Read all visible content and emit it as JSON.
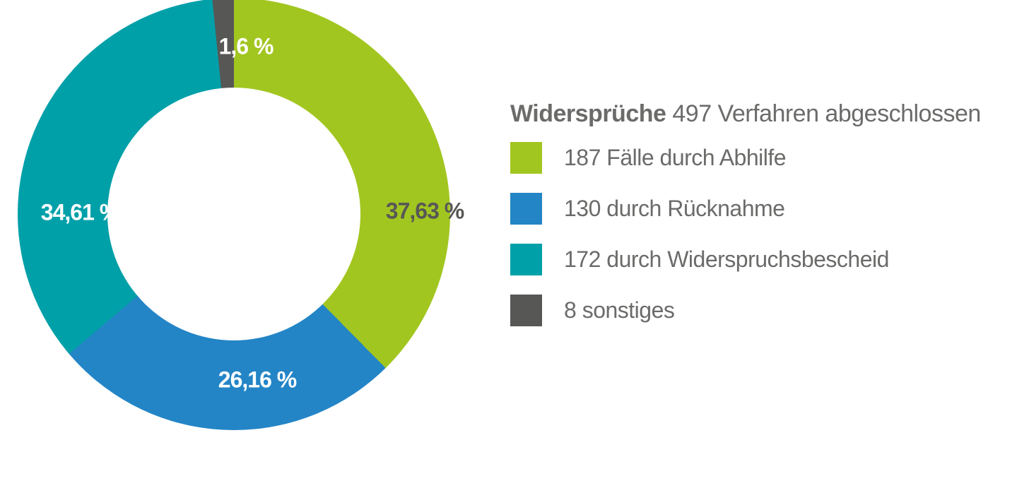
{
  "page": {
    "background": "#ffffff",
    "text_color": "#6b6b6a"
  },
  "header": {
    "title_bold": "Widersprüche",
    "title_rest": "497 Verfahren abgeschlossen"
  },
  "chart_data": {
    "type": "pie",
    "subtype": "donut",
    "title": "Widersprüche 497 Verfahren abgeschlossen",
    "total": 497,
    "unit": "Verfahren",
    "direction": "clockwise",
    "start_angle_deg": 0,
    "legend_position": "right",
    "inner_radius_ratio": 0.585,
    "segments": [
      {
        "name": "Fälle durch Abhilfe",
        "legend_label": "187 Fälle durch Abhilfe",
        "value": 187,
        "percent": 37.63,
        "display_percent": "37,63 %",
        "color": "#a2c620",
        "percent_label_color": "#575756"
      },
      {
        "name": "durch Rücknahme",
        "legend_label": "130 durch Rücknahme",
        "value": 130,
        "percent": 26.16,
        "display_percent": "26,16 %",
        "color": "#2385c6",
        "percent_label_color": "#ffffff"
      },
      {
        "name": "durch Widerspruchsbescheid",
        "legend_label": "172 durch Widerspruchsbescheid",
        "value": 172,
        "percent": 34.61,
        "display_percent": "34,61 %",
        "color": "#00a0a9",
        "percent_label_color": "#ffffff"
      },
      {
        "name": "sonstiges",
        "legend_label": "8 sonstiges",
        "value": 8,
        "percent": 1.6,
        "display_percent": "1,6 %",
        "color": "#575756",
        "percent_label_color": "#ffffff"
      }
    ]
  }
}
